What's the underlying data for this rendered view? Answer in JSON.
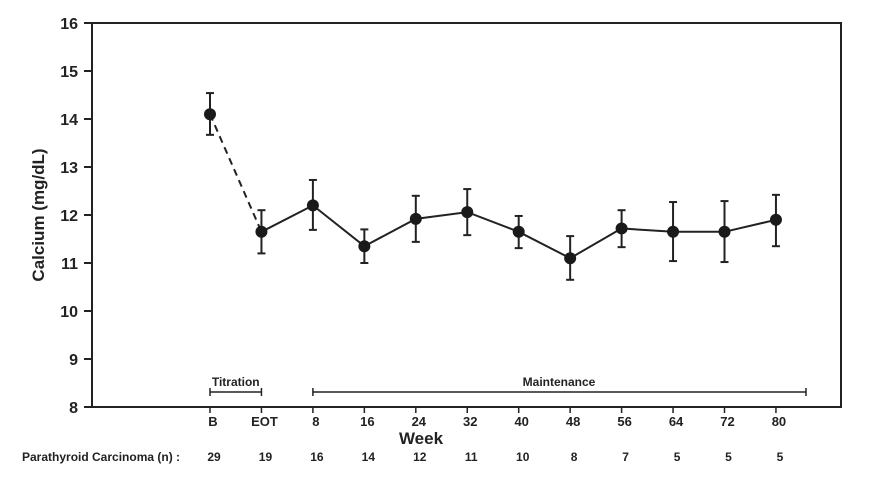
{
  "chart_data": {
    "type": "line",
    "title": "",
    "xlabel": "Week",
    "ylabel": "Calcium (mg/dL)",
    "ylim": [
      8,
      16
    ],
    "yticks": [
      8,
      9,
      10,
      11,
      12,
      13,
      14,
      15,
      16
    ],
    "grid": false,
    "categories": [
      "B",
      "EOT",
      "8",
      "16",
      "24",
      "32",
      "40",
      "48",
      "56",
      "64",
      "72",
      "80"
    ],
    "series": [
      {
        "name": "Parathyroid Carcinoma",
        "values": [
          14.1,
          11.65,
          12.2,
          11.35,
          11.92,
          12.06,
          11.65,
          11.1,
          11.72,
          11.65,
          11.65,
          11.9
        ],
        "upper": [
          14.54,
          12.1,
          12.73,
          11.7,
          12.4,
          12.54,
          11.98,
          11.56,
          12.1,
          12.27,
          12.29,
          12.42
        ],
        "lower": [
          13.67,
          11.2,
          11.69,
          11.0,
          11.44,
          11.58,
          11.31,
          10.65,
          11.33,
          11.04,
          11.02,
          11.35
        ],
        "dashed_segment": [
          "B",
          "EOT"
        ]
      }
    ],
    "phases": [
      {
        "label": "Titration",
        "from": "B",
        "to": "EOT"
      },
      {
        "label": "Maintenance",
        "from": "8",
        "to": "end"
      }
    ],
    "n_row": {
      "label": "Parathyroid Carcinoma (n) :",
      "values": [
        29,
        19,
        16,
        14,
        12,
        11,
        10,
        8,
        7,
        5,
        5,
        5
      ]
    }
  }
}
